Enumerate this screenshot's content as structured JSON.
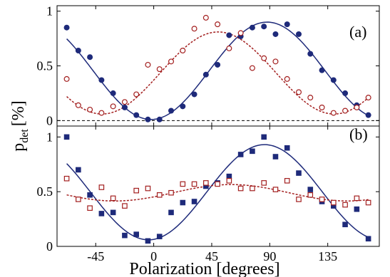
{
  "colors": {
    "blue": "#1e2a7a",
    "red": "#a31f1f",
    "axis": "#000000",
    "zero_line": "#000000"
  },
  "xlabel": "Polarization [degrees]",
  "ylabel_main": "p",
  "ylabel_sub": "det",
  "ylabel_unit": "[%]",
  "chart_data": [
    {
      "type": "scatter",
      "panel_label": "(a)",
      "xlim": [
        -75,
        175
      ],
      "ylim": [
        -0.05,
        1.05
      ],
      "xticks": [
        -45,
        0,
        45,
        90,
        135
      ],
      "xtick_labels": [
        "",
        "",
        "",
        "",
        ""
      ],
      "yticks": [
        0,
        0.5,
        1
      ],
      "ytick_labels": [
        "0",
        "0.5",
        "1"
      ],
      "zero_line": true,
      "series": [
        {
          "marker": "filled-circle",
          "color": "#1e2a7a",
          "x": [
            -67.5,
            -58.5,
            -49.5,
            -40.5,
            -31.5,
            -22.5,
            -13.5,
            -4.5,
            4.5,
            13.5,
            22.5,
            31.5,
            40.5,
            49.5,
            58.5,
            67.5,
            76.5,
            85.5,
            94.5,
            103.5,
            112.5,
            121.5,
            130.5,
            139.5,
            148.5,
            157.5,
            166.5
          ],
          "y": [
            0.85,
            0.64,
            0.58,
            0.37,
            0.25,
            0.12,
            0.05,
            0.01,
            0.01,
            0.09,
            0.13,
            0.24,
            0.42,
            0.51,
            0.78,
            0.77,
            0.85,
            0.86,
            0.79,
            0.88,
            0.79,
            0.61,
            0.46,
            0.37,
            0.25,
            0.14,
            0.05
          ]
        },
        {
          "marker": "open-circle",
          "color": "#a31f1f",
          "x": [
            -67.5,
            -58.5,
            -49.5,
            -40.5,
            -31.5,
            -22.5,
            -13.5,
            -4.5,
            4.5,
            13.5,
            22.5,
            31.5,
            40.5,
            49.5,
            58.5,
            67.5,
            76.5,
            85.5,
            94.5,
            103.5,
            112.5,
            121.5,
            130.5,
            139.5,
            148.5,
            157.5,
            166.5
          ],
          "y": [
            0.38,
            0.14,
            0.1,
            0.07,
            0.13,
            0.17,
            0.24,
            0.51,
            0.47,
            0.54,
            0.64,
            0.84,
            0.94,
            0.88,
            0.66,
            0.8,
            0.48,
            0.57,
            0.54,
            0.38,
            0.26,
            0.21,
            0.12,
            0.07,
            0.09,
            0.12,
            0.21
          ]
        }
      ],
      "fits": [
        {
          "style": "solid",
          "color": "#1e2a7a",
          "offset": 0.455,
          "amplitude": 0.445,
          "phase_deg": 88,
          "x_range": [
            -67.5,
            166.5
          ]
        },
        {
          "style": "dashed",
          "color": "#a31f1f",
          "offset": 0.435,
          "amplitude": 0.375,
          "phase_deg": 50,
          "x_range": [
            -67.5,
            166.5
          ]
        }
      ]
    },
    {
      "type": "scatter",
      "panel_label": "(b)",
      "xlim": [
        -75,
        175
      ],
      "ylim": [
        0,
        1.1
      ],
      "xticks": [
        -45,
        0,
        45,
        90,
        135
      ],
      "xtick_labels": [
        "-45",
        "0",
        "45",
        "90",
        "135"
      ],
      "yticks": [
        0,
        0.5,
        1
      ],
      "ytick_labels": [
        "0",
        "0.5",
        "1"
      ],
      "zero_line": false,
      "series": [
        {
          "marker": "filled-square",
          "color": "#1e2a7a",
          "x": [
            -67.5,
            -58.5,
            -49.5,
            -40.5,
            -31.5,
            -22.5,
            -13.5,
            -4.5,
            4.5,
            13.5,
            22.5,
            31.5,
            40.5,
            49.5,
            58.5,
            67.5,
            76.5,
            85.5,
            94.5,
            103.5,
            112.5,
            121.5,
            130.5,
            139.5,
            148.5,
            157.5,
            166.5
          ],
          "y": [
            1.0,
            0.7,
            0.47,
            0.3,
            0.31,
            0.1,
            0.11,
            0.05,
            0.09,
            0.31,
            0.4,
            0.41,
            0.55,
            0.58,
            0.64,
            0.84,
            0.87,
            1.0,
            0.82,
            0.9,
            0.67,
            0.52,
            0.41,
            0.37,
            0.2,
            0.34,
            0.07
          ]
        },
        {
          "marker": "open-square",
          "color": "#a31f1f",
          "x": [
            -67.5,
            -58.5,
            -49.5,
            -40.5,
            -31.5,
            -22.5,
            -13.5,
            -4.5,
            4.5,
            13.5,
            22.5,
            31.5,
            40.5,
            49.5,
            58.5,
            67.5,
            76.5,
            85.5,
            94.5,
            103.5,
            112.5,
            121.5,
            130.5,
            139.5,
            148.5,
            157.5,
            166.5
          ],
          "y": [
            0.62,
            0.43,
            0.35,
            0.54,
            0.44,
            0.37,
            0.51,
            0.53,
            0.47,
            0.49,
            0.57,
            0.57,
            0.58,
            0.57,
            0.6,
            0.53,
            0.53,
            0.58,
            0.52,
            0.6,
            0.43,
            0.47,
            0.43,
            0.4,
            0.38,
            0.44,
            0.4
          ]
        }
      ],
      "fits": [
        {
          "style": "solid",
          "color": "#1e2a7a",
          "offset": 0.495,
          "amplitude": 0.435,
          "phase_deg": 86,
          "x_range": [
            -67.5,
            166.5
          ]
        },
        {
          "style": "dashed",
          "color": "#a31f1f",
          "offset": 0.49,
          "amplitude": 0.075,
          "phase_deg": 60,
          "x_range": [
            -67.5,
            166.5
          ]
        }
      ]
    }
  ]
}
